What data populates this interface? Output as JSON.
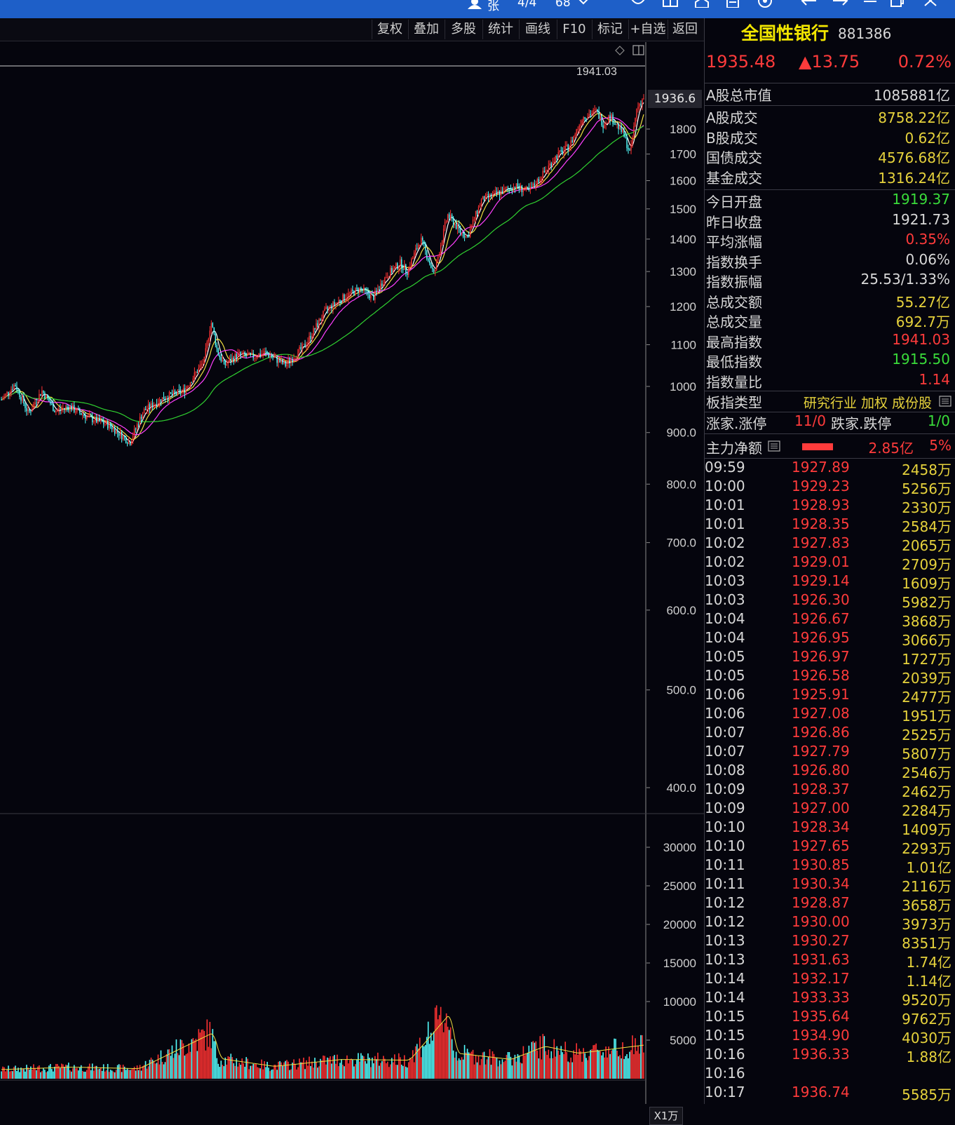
{
  "titlebar": {
    "user": "张",
    "page": "4/4",
    "zoom": "68"
  },
  "toolbar": {
    "buttons": [
      "复权",
      "叠加",
      "多股",
      "统计",
      "画线",
      "F10",
      "标记",
      "+自选",
      "返回"
    ]
  },
  "chart": {
    "current_price_tag": "1936.6",
    "max_label": "1941.03",
    "price_ticks": [
      "1800",
      "1700",
      "1600",
      "1500",
      "1400",
      "1300",
      "1200",
      "1100",
      "1000",
      "900.0",
      "800.0",
      "700.0",
      "600.0",
      "500.0",
      "400.0"
    ],
    "volume_ticks": [
      "30000",
      "25000",
      "20000",
      "15000",
      "10000",
      "5000"
    ],
    "volume_unit": "X1万",
    "colors": {
      "up": "#ff3232",
      "down": "#54ffff",
      "ma5": "#ffffff",
      "ma10": "#f0e040",
      "ma20": "#ff40ff",
      "ma60": "#30d030"
    }
  },
  "chart_data": {
    "type": "line",
    "title": "",
    "xlabel": "",
    "ylabel": "",
    "ylim": [
      340,
      1950
    ],
    "y_scale": "log",
    "approx_price_path": [
      [
        0,
        970
      ],
      [
        4,
        1005
      ],
      [
        8,
        940
      ],
      [
        12,
        990
      ],
      [
        16,
        945
      ],
      [
        20,
        955
      ],
      [
        26,
        930
      ],
      [
        32,
        915
      ],
      [
        38,
        880
      ],
      [
        42,
        945
      ],
      [
        48,
        975
      ],
      [
        54,
        990
      ],
      [
        60,
        1060
      ],
      [
        62,
        1160
      ],
      [
        64,
        1080
      ],
      [
        66,
        1050
      ],
      [
        70,
        1075
      ],
      [
        74,
        1070
      ],
      [
        78,
        1080
      ],
      [
        84,
        1050
      ],
      [
        90,
        1100
      ],
      [
        96,
        1190
      ],
      [
        102,
        1230
      ],
      [
        106,
        1250
      ],
      [
        110,
        1225
      ],
      [
        114,
        1290
      ],
      [
        118,
        1325
      ],
      [
        120,
        1300
      ],
      [
        124,
        1400
      ],
      [
        128,
        1290
      ],
      [
        132,
        1480
      ],
      [
        136,
        1420
      ],
      [
        138,
        1410
      ],
      [
        142,
        1530
      ],
      [
        148,
        1560
      ],
      [
        152,
        1580
      ],
      [
        156,
        1560
      ],
      [
        160,
        1620
      ],
      [
        164,
        1690
      ],
      [
        168,
        1730
      ],
      [
        172,
        1850
      ],
      [
        176,
        1875
      ],
      [
        178,
        1820
      ],
      [
        180,
        1855
      ],
      [
        184,
        1780
      ],
      [
        186,
        1700
      ],
      [
        188,
        1890
      ],
      [
        190,
        1935
      ]
    ],
    "approx_volume_path": [
      [
        0,
        1200
      ],
      [
        20,
        1500
      ],
      [
        40,
        1300
      ],
      [
        62,
        6000
      ],
      [
        64,
        2600
      ],
      [
        80,
        1600
      ],
      [
        100,
        2500
      ],
      [
        120,
        2400
      ],
      [
        132,
        8500
      ],
      [
        134,
        3300
      ],
      [
        150,
        2500
      ],
      [
        160,
        4200
      ],
      [
        170,
        3300
      ],
      [
        190,
        4400
      ]
    ]
  },
  "quote": {
    "name": "全国性银行",
    "code": "881386",
    "price": "1935.48",
    "change": "▲13.75",
    "pct": "0.72%"
  },
  "stats_a": [
    {
      "label": "A股总市值",
      "value": "1085881亿",
      "color": "#d8d8d8"
    }
  ],
  "stats_b": [
    {
      "label": "A股成交",
      "value": "8758.22亿",
      "color": "#e6d23c"
    },
    {
      "label": "B股成交",
      "value": "0.62亿",
      "color": "#e6d23c"
    },
    {
      "label": "国债成交",
      "value": "4576.68亿",
      "color": "#e6d23c"
    },
    {
      "label": "基金成交",
      "value": "1316.24亿",
      "color": "#e6d23c"
    }
  ],
  "stats_c": [
    {
      "label": "今日开盘",
      "value": "1919.37",
      "color": "#3adc3a"
    },
    {
      "label": "昨日收盘",
      "value": "1921.73",
      "color": "#d8d8d8"
    },
    {
      "label": "平均涨幅",
      "value": "0.35%",
      "color": "#ff3b3b"
    },
    {
      "label": "指数换手",
      "value": "0.06%",
      "color": "#d8d8d8"
    },
    {
      "label": "指数振幅",
      "value": "25.53/1.33%",
      "color": "#d8d8d8"
    },
    {
      "label": "总成交额",
      "value": "55.27亿",
      "color": "#e6d23c"
    },
    {
      "label": "总成交量",
      "value": "692.7万",
      "color": "#e6d23c"
    },
    {
      "label": "最高指数",
      "value": "1941.03",
      "color": "#ff3b3b"
    },
    {
      "label": "最低指数",
      "value": "1915.50",
      "color": "#3adc3a"
    },
    {
      "label": "指数量比",
      "value": "1.14",
      "color": "#ff3b3b"
    }
  ],
  "board": {
    "type_label": "板指类型",
    "type_value": "研究行业 加权 成份股",
    "up_label": "涨家.涨停",
    "up_value": "11/0",
    "down_label": "跌家.跌停",
    "down_value": "1/0",
    "flow_label": "主力净额",
    "flow_value": "2.85亿",
    "flow_pct": "5%"
  },
  "ticks": [
    {
      "time": "09:59",
      "price": "1927.89",
      "vol": "2458万"
    },
    {
      "time": "10:00",
      "price": "1929.23",
      "vol": "5256万"
    },
    {
      "time": "10:01",
      "price": "1928.93",
      "vol": "2330万"
    },
    {
      "time": "10:01",
      "price": "1928.35",
      "vol": "2584万"
    },
    {
      "time": "10:02",
      "price": "1927.83",
      "vol": "2065万"
    },
    {
      "time": "10:02",
      "price": "1929.01",
      "vol": "2709万"
    },
    {
      "time": "10:03",
      "price": "1929.14",
      "vol": "1609万"
    },
    {
      "time": "10:03",
      "price": "1926.30",
      "vol": "5982万"
    },
    {
      "time": "10:04",
      "price": "1926.67",
      "vol": "3868万"
    },
    {
      "time": "10:04",
      "price": "1926.95",
      "vol": "3066万"
    },
    {
      "time": "10:05",
      "price": "1926.97",
      "vol": "1727万"
    },
    {
      "time": "10:05",
      "price": "1926.58",
      "vol": "2039万"
    },
    {
      "time": "10:06",
      "price": "1925.91",
      "vol": "2477万"
    },
    {
      "time": "10:06",
      "price": "1927.08",
      "vol": "1951万"
    },
    {
      "time": "10:07",
      "price": "1926.86",
      "vol": "2525万"
    },
    {
      "time": "10:07",
      "price": "1927.79",
      "vol": "5807万"
    },
    {
      "time": "10:08",
      "price": "1926.80",
      "vol": "2546万"
    },
    {
      "time": "10:09",
      "price": "1928.37",
      "vol": "2462万"
    },
    {
      "time": "10:09",
      "price": "1927.00",
      "vol": "2284万"
    },
    {
      "time": "10:10",
      "price": "1928.34",
      "vol": "1409万"
    },
    {
      "time": "10:10",
      "price": "1927.65",
      "vol": "2293万"
    },
    {
      "time": "10:11",
      "price": "1930.85",
      "vol": "1.01亿"
    },
    {
      "time": "10:11",
      "price": "1930.34",
      "vol": "2116万"
    },
    {
      "time": "10:12",
      "price": "1928.87",
      "vol": "3658万"
    },
    {
      "time": "10:12",
      "price": "1930.00",
      "vol": "3973万"
    },
    {
      "time": "10:13",
      "price": "1930.27",
      "vol": "8351万"
    },
    {
      "time": "10:13",
      "price": "1931.63",
      "vol": "1.74亿"
    },
    {
      "time": "10:14",
      "price": "1932.17",
      "vol": "1.14亿"
    },
    {
      "time": "10:14",
      "price": "1933.33",
      "vol": "9520万"
    },
    {
      "time": "10:15",
      "price": "1935.64",
      "vol": "9762万"
    },
    {
      "time": "10:15",
      "price": "1934.90",
      "vol": "4030万"
    },
    {
      "time": "10:16",
      "price": "1936.33",
      "vol": "1.88亿"
    },
    {
      "time": "10:16",
      "price": "",
      "vol": ""
    },
    {
      "time": "10:17",
      "price": "1936.74",
      "vol": "5585万"
    }
  ]
}
